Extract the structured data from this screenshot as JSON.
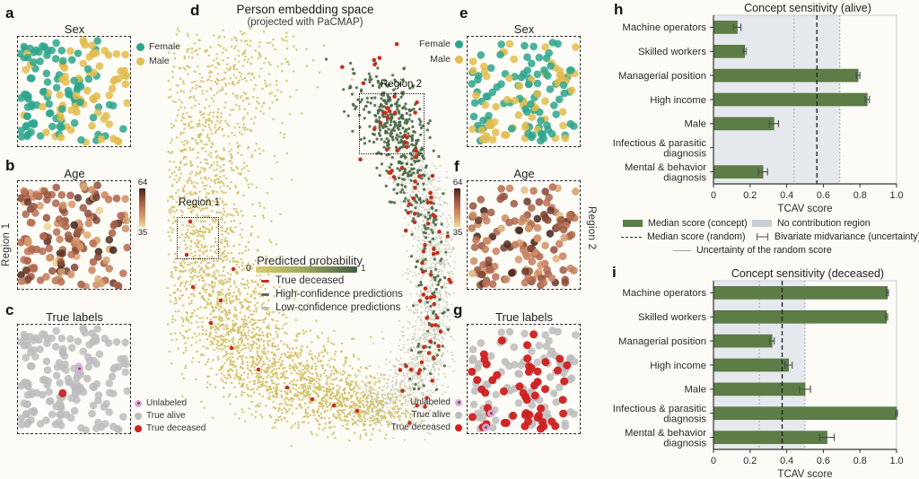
{
  "colors": {
    "female": "#2da58c",
    "male": "#e2bc4d",
    "dot_gray": "#bcbcbc",
    "dot_red": "#cf1f1f",
    "dot_violet": "#dca6dc",
    "d_yellow": "#d2c269",
    "d_sage": "#c9cdbb",
    "d_green": "#4d6a49",
    "d_red": "#c52f1e",
    "marker_high": "#5c6a5c",
    "marker_low": "#b9beb3",
    "bar_green": "#5c7e46",
    "no_contrib_bg": "#e5e8ec",
    "no_contrib_legend": "#c9ced4",
    "age_stops": [
      "#eed9a0",
      "#d7a06d",
      "#bf7355",
      "#8f4d3a",
      "#402219"
    ],
    "prob_stops": [
      "#d8cb6e",
      "#9aa55e",
      "#3f5d44"
    ]
  },
  "age_range": [
    35,
    64
  ],
  "panels": {
    "a": {
      "letter": "a",
      "title": "Sex"
    },
    "b": {
      "letter": "b",
      "title": "Age",
      "cb_max": "64",
      "cb_min": "35",
      "region": "Region 1"
    },
    "c": {
      "letter": "c",
      "title": "True labels"
    },
    "d": {
      "letter": "d",
      "title": "Person embedding space",
      "subtitle": "(projected with PaCMAP)",
      "region1": "Region 1",
      "region2": "Region 2",
      "legend_title": "Predicted probability",
      "legend_min": "0",
      "legend_max": "1",
      "legend_items": [
        "True deceased",
        "High-confidence predictions",
        "Low-confidence predictions"
      ]
    },
    "e": {
      "letter": "e",
      "title": "Sex"
    },
    "f": {
      "letter": "f",
      "title": "Age",
      "cb_max": "64",
      "cb_min": "35",
      "region": "Region 2"
    },
    "g": {
      "letter": "g",
      "title": "True labels"
    },
    "h": {
      "letter": "h"
    },
    "i": {
      "letter": "i"
    }
  },
  "sex_legend": {
    "female": "Female",
    "male": "Male"
  },
  "labels_legend": {
    "unlabeled": "Unlabeled",
    "alive": "True alive",
    "deceased": "True deceased"
  },
  "tcav_legend": {
    "concept": "Median score (concept)",
    "no_contrib": "No contribution region",
    "random": "Median score (random)",
    "bivariate": "Bivariate midvariance (uncertainty)",
    "uncertainty": "Uncertainty of the random score"
  },
  "chart_data": [
    {
      "id": "chart-h",
      "type": "bar",
      "title": "Concept sensitivity (alive)",
      "xlabel": "TCAV score",
      "xlim": [
        0,
        1
      ],
      "xticks": [
        0,
        0.2,
        0.4,
        0.6,
        0.8,
        1.0
      ],
      "xtick_labels": [
        "0",
        "0.2",
        "0.4",
        "0.6",
        "0.8",
        "1.0"
      ],
      "categories": [
        [
          "Machine operators"
        ],
        [
          "Skilled workers"
        ],
        [
          "Managerial position"
        ],
        [
          "High income"
        ],
        [
          "Male"
        ],
        [
          "Infectious & parasitic",
          "diagnosis"
        ],
        [
          "Mental & behavior",
          "diagnosis"
        ]
      ],
      "values": [
        0.13,
        0.17,
        0.79,
        0.84,
        0.33,
        0.0,
        0.27
      ],
      "errors": [
        0.02,
        0.008,
        0.01,
        0.012,
        0.025,
        0,
        0.025
      ],
      "median_random": 0.565,
      "uncertainty_band": [
        0.44,
        0.69
      ],
      "no_contribution_max": 0.69
    },
    {
      "id": "chart-i",
      "type": "bar",
      "title": "Concept sensitivity (deceased)",
      "xlabel": "TCAV score",
      "xlim": [
        0,
        1
      ],
      "xticks": [
        0,
        0.2,
        0.4,
        0.6,
        0.8,
        1.0
      ],
      "xtick_labels": [
        "0",
        "0.2",
        "0.4",
        "0.6",
        "0.8",
        "1.0"
      ],
      "categories": [
        [
          "Machine operators"
        ],
        [
          "Skilled workers"
        ],
        [
          "Managerial position"
        ],
        [
          "High income"
        ],
        [
          "Male"
        ],
        [
          "Infectious & parasitic",
          "diagnosis"
        ],
        [
          "Mental & behavior",
          "diagnosis"
        ]
      ],
      "values": [
        0.95,
        0.945,
        0.32,
        0.41,
        0.5,
        1.0,
        0.62
      ],
      "errors": [
        0.006,
        0.006,
        0.012,
        0.02,
        0.03,
        0.005,
        0.04
      ],
      "median_random": 0.375,
      "uncertainty_band": [
        0.25,
        0.5
      ],
      "no_contribution_max": 0.5
    }
  ],
  "scatter": {
    "region1": {
      "n": 168,
      "seed": 11,
      "red_index": 28,
      "violet_index": 77,
      "female_left_bias": true
    },
    "region2": {
      "n": 152,
      "seed": 23,
      "red_prob": 0.34,
      "violet_indices": [
        12,
        138
      ]
    },
    "embedding": {
      "seed": 5,
      "groups": [
        {
          "color": "d_yellow",
          "r": 1.25,
          "op": 0.85,
          "clusters": [
            [
              73,
              75,
              42,
              26,
              140
            ],
            [
              55,
              112,
              40,
              27,
              170
            ],
            [
              43,
              152,
              35,
              29,
              180
            ],
            [
              37,
              195,
              32,
              30,
              190
            ],
            [
              37,
              238,
              32,
              30,
              200
            ],
            [
              42,
              280,
              33,
              29,
              220
            ],
            [
              52,
              318,
              34,
              27,
              240
            ],
            [
              67,
              352,
              36,
              26,
              260
            ],
            [
              87,
              382,
              38,
              25,
              280
            ],
            [
              113,
              408,
              40,
              23,
              290
            ],
            [
              145,
              428,
              40,
              21,
              290
            ],
            [
              177,
              442,
              36,
              19,
              270
            ],
            [
              210,
              452,
              30,
              16,
              220
            ],
            [
              235,
              455,
              22,
              13,
              120
            ],
            [
              105,
              60,
              30,
              18,
              40
            ],
            [
              40,
              60,
              25,
              15,
              30
            ]
          ]
        },
        {
          "color": "d_sage",
          "r": 1.0,
          "op": 0.9,
          "clusters": [
            [
              253,
              445,
              22,
              16,
              150
            ],
            [
              273,
              425,
              20,
              18,
              170
            ],
            [
              287,
              398,
              17,
              20,
              170
            ],
            [
              295,
              368,
              15,
              22,
              160
            ],
            [
              299,
              336,
              14,
              24,
              150
            ],
            [
              301,
              304,
              13,
              24,
              140
            ],
            [
              299,
              272,
              13,
              23,
              130
            ],
            [
              294,
              242,
              14,
              21,
              120
            ],
            [
              287,
              214,
              15,
              19,
              110
            ],
            [
              279,
              190,
              15,
              17,
              90
            ],
            [
              250,
              465,
              28,
              10,
              70
            ]
          ]
        },
        {
          "color": "d_green",
          "r": 1.6,
          "op": 0.92,
          "clusters": [
            [
              270,
              195,
              14,
              14,
              60
            ],
            [
              263,
              168,
              16,
              14,
              90
            ],
            [
              255,
              143,
              18,
              13,
              110
            ],
            [
              247,
              120,
              20,
              12,
              90
            ],
            [
              239,
              99,
              20,
              10,
              40
            ],
            [
              230,
              78,
              22,
              9,
              14
            ],
            [
              285,
              230,
              12,
              16,
              35
            ],
            [
              292,
              260,
              11,
              18,
              30
            ],
            [
              297,
              300,
              10,
              20,
              20
            ],
            [
              299,
              340,
              10,
              20,
              18
            ],
            [
              293,
              380,
              11,
              18,
              15
            ],
            [
              281,
              415,
              12,
              16,
              12
            ]
          ]
        },
        {
          "color": "d_red",
          "r": 2.3,
          "op": 1,
          "clusters": [
            [
              248,
              125,
              18,
              12,
              9
            ],
            [
              258,
              155,
              16,
              12,
              10
            ],
            [
              267,
              185,
              14,
              14,
              9
            ],
            [
              280,
              215,
              12,
              15,
              8
            ],
            [
              289,
              248,
              11,
              16,
              8
            ],
            [
              295,
              285,
              10,
              18,
              8
            ],
            [
              298,
              320,
              10,
              18,
              8
            ],
            [
              295,
              355,
              11,
              18,
              7
            ],
            [
              287,
              390,
              12,
              16,
              7
            ],
            [
              273,
              420,
              14,
              13,
              6
            ],
            [
              253,
              445,
              16,
              10,
              4
            ],
            [
              235,
              80,
              25,
              12,
              4
            ],
            [
              260,
              60,
              15,
              8,
              2
            ]
          ],
          "points": [
            [
              27,
              247
            ],
            [
              23,
              284
            ],
            [
              30,
              320
            ],
            [
              50,
              360
            ],
            [
              73,
              388
            ],
            [
              103,
              412
            ],
            [
              135,
              432
            ],
            [
              163,
              445
            ],
            [
              187,
              452
            ],
            [
              213,
              458
            ],
            [
              75,
              300
            ],
            [
              61,
              335
            ]
          ]
        }
      ]
    }
  }
}
